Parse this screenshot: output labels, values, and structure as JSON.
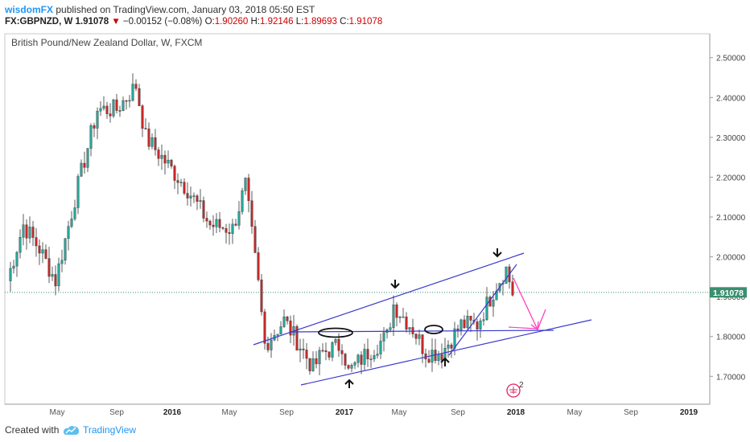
{
  "header": {
    "author": "wisdomFX",
    "published": "published on TradingView.com, January 03, 2018 05:50 EST",
    "symbol": "FX:GBPNZD, W",
    "last": "1.91078",
    "change": "−0.00152 (−0.08%)",
    "o_label": "O:",
    "o": "1.90260",
    "h_label": "H:",
    "h": "1.92146",
    "l_label": "L:",
    "l": "1.89693",
    "c_label": "C:",
    "c": "1.91078"
  },
  "footer": {
    "created": "Created with",
    "brand": "TradingView"
  },
  "colors": {
    "up": "#26a69a",
    "down": "#c62828",
    "trend": "#3838d0",
    "forecast": "#ff40c0",
    "price_tag": "#3a8f70"
  },
  "chart_data": {
    "type": "candlestick",
    "title": "British Pound/New Zealand Dollar, W, FXCM",
    "ylim": [
      1.63,
      2.56
    ],
    "y_ticks": [
      "2.50000",
      "2.40000",
      "2.30000",
      "2.20000",
      "2.10000",
      "2.00000",
      "1.90000",
      "1.80000",
      "1.70000"
    ],
    "x_ticks": [
      "May",
      "Sep",
      "2016",
      "May",
      "Sep",
      "2017",
      "May",
      "Sep",
      "2018",
      "May",
      "Sep",
      "2019"
    ],
    "last_price": "1.91078",
    "badge": "2",
    "anchors": [
      {
        "t": 0,
        "p": 1.94
      },
      {
        "t": 5,
        "p": 2.08
      },
      {
        "t": 10,
        "p": 2.02
      },
      {
        "t": 15,
        "p": 1.94
      },
      {
        "t": 22,
        "p": 2.18
      },
      {
        "t": 28,
        "p": 2.37
      },
      {
        "t": 34,
        "p": 2.37
      },
      {
        "t": 40,
        "p": 2.43
      },
      {
        "t": 43,
        "p": 2.3
      },
      {
        "t": 48,
        "p": 2.25
      },
      {
        "t": 56,
        "p": 2.17
      },
      {
        "t": 63,
        "p": 2.08
      },
      {
        "t": 70,
        "p": 2.07
      },
      {
        "t": 74,
        "p": 2.18
      },
      {
        "t": 78,
        "p": 1.93
      },
      {
        "t": 80,
        "p": 1.78
      },
      {
        "t": 86,
        "p": 1.84
      },
      {
        "t": 90,
        "p": 1.79
      },
      {
        "t": 95,
        "p": 1.72
      },
      {
        "t": 98,
        "p": 1.76
      },
      {
        "t": 104,
        "p": 1.78
      },
      {
        "t": 106,
        "p": 1.71
      },
      {
        "t": 112,
        "p": 1.76
      },
      {
        "t": 118,
        "p": 1.8
      },
      {
        "t": 120,
        "p": 1.88
      },
      {
        "t": 126,
        "p": 1.82
      },
      {
        "t": 130,
        "p": 1.76
      },
      {
        "t": 135,
        "p": 1.76
      },
      {
        "t": 141,
        "p": 1.83
      },
      {
        "t": 146,
        "p": 1.83
      },
      {
        "t": 152,
        "p": 1.93
      },
      {
        "t": 155,
        "p": 1.97
      },
      {
        "t": 157,
        "p": 1.91
      }
    ]
  }
}
